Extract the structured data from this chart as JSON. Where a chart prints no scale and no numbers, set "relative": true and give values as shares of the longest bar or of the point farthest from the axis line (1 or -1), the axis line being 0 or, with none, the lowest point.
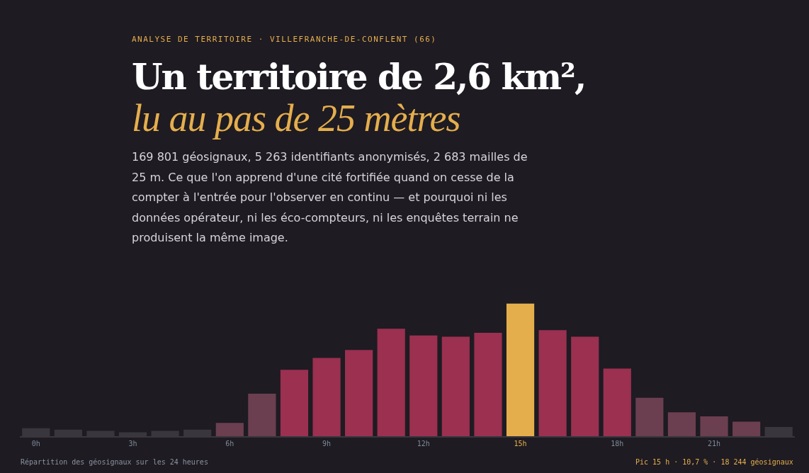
{
  "chart_data": {
    "type": "bar",
    "relative": true,
    "title": "Un territoire de 2,6 km²,\nlu au pas de 25 mètres",
    "subtitle": "169 801 géosignaux, 5 263 identifiants anonymisés, 2 683 mailles de 25 m. Ce que l'on apprend d'une cité fortifiée quand on cesse de la compter à l'entrée pour l'observer en continu — et pourquoi ni les données opérateur, ni les éco-compteurs, ni les enquêtes terrain ne produisent la même image.",
    "categories": [
      "0h",
      null,
      null,
      "3h",
      null,
      null,
      "6h",
      null,
      null,
      "9h",
      null,
      null,
      "12h",
      null,
      null,
      "15h",
      null,
      null,
      "18h",
      null,
      null,
      "21h",
      null,
      null
    ],
    "values": [
      0.06,
      0.05,
      0.04,
      0.03,
      0.04,
      0.05,
      0.1,
      0.32,
      0.5,
      0.59,
      0.65,
      0.81,
      0.76,
      0.75,
      0.78,
      1,
      0.8,
      0.75,
      0.51,
      0.29,
      0.18,
      0.15,
      0.11,
      0.07
    ],
    "colors": [
      "#3a363e",
      "#3a363e",
      "#3a363e",
      "#3a363e",
      "#3a363e",
      "#3a363e",
      "#6b3f4f",
      "#6b3f4f",
      "#9b3050",
      "#9b3050",
      "#9b3050",
      "#9b3050",
      "#9b3050",
      "#9b3050",
      "#9b3050",
      "#e5ae4d",
      "#9b3050",
      "#9b3050",
      "#9b3050",
      "#6b3f4f",
      "#6b3f4f",
      "#6b3f4f",
      "#6b3f4f",
      "#3a363e"
    ],
    "annotations": [
      "ANALYSE DE TERRITOIRE · VILLEFRANCHE-DE-CONFLENT (66)",
      "Répartition des géosignaux sur les 24 heures",
      "Pic 15 h · 10,7 % · 18 244 géosignaux"
    ]
  }
}
